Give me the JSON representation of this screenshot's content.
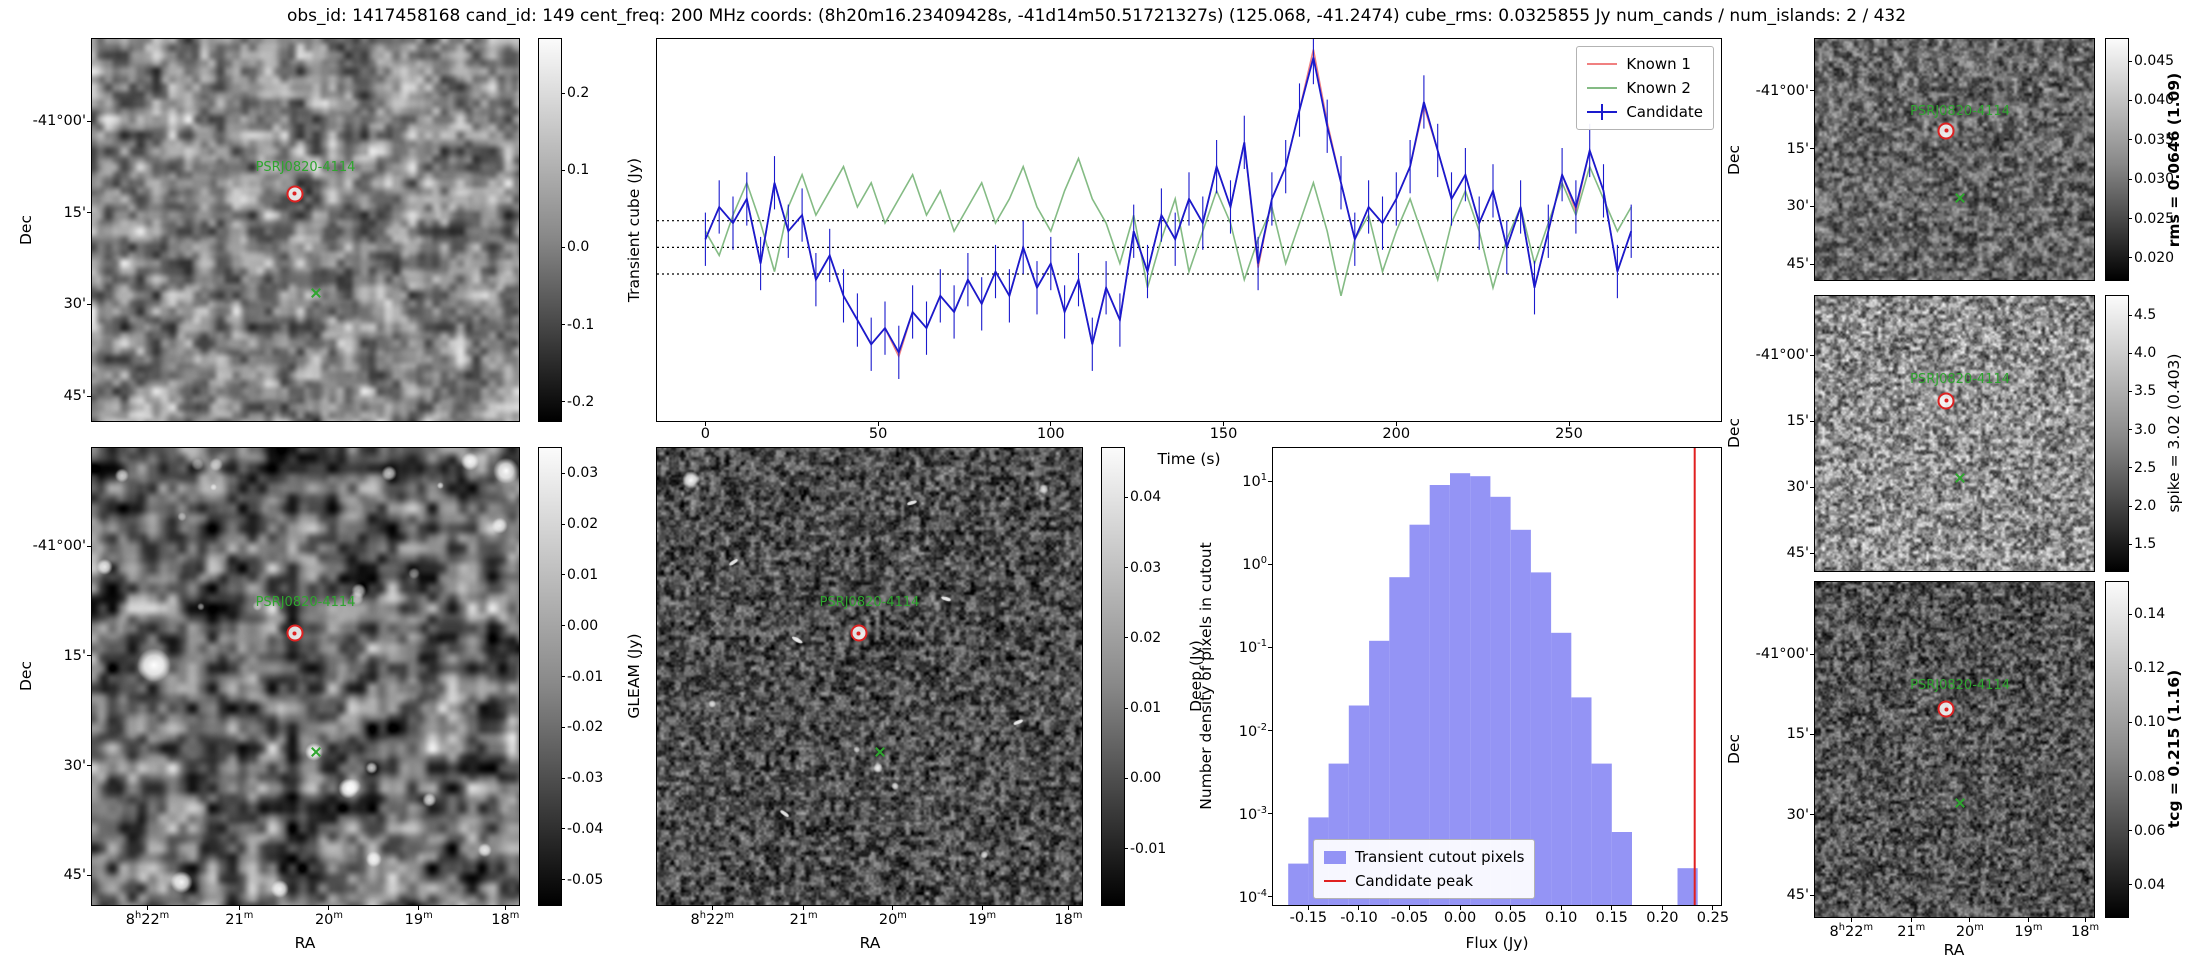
{
  "title": "obs_id: 1417458168 cand_id: 149 cent_freq: 200 MHz coords: (8h20m16.23409428s, -41d14m50.51721327s) (125.068, -41.2474) cube_rms: 0.0325855 Jy num_cands / num_islands: 2 / 432",
  "source_name": "PSRJ0820-4114",
  "colors": {
    "candidate": "#1a1acd",
    "known1": "#f08080",
    "known2": "#84bb84",
    "hist_fill": "#8181f3",
    "candidate_peak_line": "#e02020",
    "source_label": "#2fa52f",
    "marker": "#dd2222",
    "threshold_line": "#000000"
  },
  "axes": {
    "dec_label": "Dec",
    "ra_label": "RA",
    "dec_ticks": [
      "-41°00'",
      "15'",
      "30'",
      "45'"
    ],
    "ra_ticks": [
      "8h22m",
      "21m",
      "20m",
      "19m",
      "18m"
    ]
  },
  "panels": {
    "transient": {
      "cbar_label": "Transient cube (Jy)",
      "vmin": -0.225,
      "vmax": 0.27,
      "cbar_ticks": [
        0.2,
        0.1,
        0.0,
        -0.1,
        -0.2
      ],
      "cbar_tick_labels": [
        "0.2",
        "0.1",
        "0.0",
        "-0.1",
        "-0.2"
      ]
    },
    "gleam": {
      "cbar_label": "GLEAM (Jy)",
      "vmin": -0.055,
      "vmax": 0.035,
      "cbar_ticks": [
        0.03,
        0.02,
        0.01,
        0.0,
        -0.01,
        -0.02,
        -0.03,
        -0.04,
        -0.05
      ],
      "cbar_tick_labels": [
        "0.03",
        "0.02",
        "0.01",
        "0.00",
        "-0.01",
        "-0.02",
        "-0.03",
        "-0.04",
        "-0.05"
      ]
    },
    "deep": {
      "cbar_label": "Deep (Jy)",
      "vmin": -0.018,
      "vmax": 0.047,
      "cbar_ticks": [
        0.04,
        0.03,
        0.02,
        0.01,
        0.0,
        -0.01
      ],
      "cbar_tick_labels": [
        "0.04",
        "0.03",
        "0.02",
        "0.01",
        "0.00",
        "-0.01"
      ]
    },
    "rms": {
      "cbar_label": "rms = 0.0646 (1.09)",
      "vmin": 0.0172,
      "vmax": 0.0478,
      "cbar_ticks": [
        0.045,
        0.04,
        0.035,
        0.03,
        0.025,
        0.02
      ],
      "cbar_tick_labels": [
        "0.045",
        "0.040",
        "0.035",
        "0.030",
        "0.025",
        "0.020"
      ]
    },
    "spike": {
      "cbar_label": "spike = 3.02 (0.403)",
      "vmin": 1.15,
      "vmax": 4.75,
      "cbar_ticks": [
        4.5,
        4.0,
        3.5,
        3.0,
        2.5,
        2.0,
        1.5
      ],
      "cbar_tick_labels": [
        "4.5",
        "4.0",
        "3.5",
        "3.0",
        "2.5",
        "2.0",
        "1.5"
      ]
    },
    "tcg": {
      "cbar_label": "tcg = 0.215 (1.16)",
      "vmin": 0.028,
      "vmax": 0.152,
      "cbar_ticks": [
        0.14,
        0.12,
        0.1,
        0.08,
        0.06,
        0.04
      ],
      "cbar_tick_labels": [
        "0.14",
        "0.12",
        "0.10",
        "0.08",
        "0.06",
        "0.04"
      ]
    }
  },
  "chart_data": [
    {
      "type": "line",
      "title": "",
      "xlabel": "Time (s)",
      "ylabel": "",
      "xlim": [
        -14,
        294
      ],
      "ylim": [
        -0.215,
        0.258
      ],
      "xticks": [
        0,
        50,
        100,
        150,
        200,
        250
      ],
      "xtick_labels": [
        "0",
        "50",
        "100",
        "150",
        "200",
        "250"
      ],
      "threshold_lines": [
        0.033,
        0.0,
        -0.033
      ],
      "legend_position": "upper right",
      "x": [
        0,
        4,
        8,
        12,
        16,
        20,
        24,
        28,
        32,
        36,
        40,
        44,
        48,
        52,
        56,
        60,
        64,
        68,
        72,
        76,
        80,
        84,
        88,
        92,
        96,
        100,
        104,
        108,
        112,
        116,
        120,
        124,
        128,
        132,
        136,
        140,
        144,
        148,
        152,
        156,
        160,
        164,
        168,
        172,
        176,
        180,
        184,
        188,
        192,
        196,
        200,
        204,
        208,
        212,
        216,
        220,
        224,
        228,
        232,
        236,
        240,
        244,
        248,
        252,
        256,
        260,
        264,
        268
      ],
      "series": [
        {
          "name": "Known 1",
          "color": "#f08080",
          "values": [
            0.01,
            0.05,
            0.03,
            0.06,
            -0.02,
            0.08,
            0.02,
            0.04,
            -0.04,
            -0.01,
            -0.06,
            -0.09,
            -0.12,
            -0.1,
            -0.135,
            -0.08,
            -0.1,
            -0.06,
            -0.08,
            -0.04,
            -0.07,
            -0.03,
            -0.06,
            0.0,
            -0.05,
            -0.02,
            -0.08,
            -0.04,
            -0.12,
            -0.05,
            -0.09,
            0.02,
            -0.03,
            0.04,
            0.01,
            0.06,
            0.03,
            0.1,
            0.05,
            0.13,
            -0.025,
            0.06,
            0.1,
            0.17,
            0.245,
            0.155,
            0.08,
            0.01,
            0.05,
            0.03,
            0.06,
            0.1,
            0.175,
            0.12,
            0.06,
            0.09,
            0.03,
            0.07,
            0.0,
            0.05,
            -0.05,
            0.02,
            0.09,
            0.045,
            0.12,
            0.07,
            -0.03,
            0.02
          ]
        },
        {
          "name": "Known 2",
          "color": "#84bb84",
          "values": [
            0.02,
            -0.01,
            0.04,
            0.08,
            0.03,
            -0.03,
            0.05,
            0.09,
            0.04,
            0.07,
            0.1,
            0.05,
            0.08,
            0.03,
            0.06,
            0.09,
            0.04,
            0.07,
            0.02,
            0.05,
            0.08,
            0.03,
            0.06,
            0.1,
            0.05,
            0.02,
            0.07,
            0.11,
            0.06,
            0.03,
            -0.02,
            0.04,
            -0.05,
            0.01,
            0.06,
            -0.03,
            0.02,
            0.07,
            0.03,
            -0.04,
            0.01,
            0.05,
            -0.02,
            0.03,
            0.08,
            0.02,
            -0.06,
            0.01,
            0.04,
            -0.03,
            0.02,
            0.06,
            0.01,
            -0.04,
            0.03,
            0.07,
            0.02,
            -0.05,
            0.01,
            0.05,
            -0.02,
            0.03,
            0.08,
            0.04,
            0.1,
            0.06,
            0.02,
            0.05
          ]
        },
        {
          "name": "Candidate",
          "color": "#1a1acd",
          "errorbar": 0.033,
          "values": [
            0.01,
            0.05,
            0.03,
            0.06,
            -0.02,
            0.08,
            0.02,
            0.04,
            -0.04,
            -0.01,
            -0.06,
            -0.09,
            -0.12,
            -0.1,
            -0.13,
            -0.08,
            -0.1,
            -0.06,
            -0.08,
            -0.04,
            -0.07,
            -0.03,
            -0.06,
            0.0,
            -0.05,
            -0.02,
            -0.08,
            -0.04,
            -0.12,
            -0.05,
            -0.09,
            0.02,
            -0.03,
            0.04,
            0.01,
            0.06,
            0.03,
            0.1,
            0.05,
            0.13,
            -0.02,
            0.06,
            0.1,
            0.17,
            0.235,
            0.15,
            0.08,
            0.01,
            0.05,
            0.03,
            0.06,
            0.1,
            0.18,
            0.12,
            0.06,
            0.09,
            0.03,
            0.07,
            0.0,
            0.05,
            -0.05,
            0.02,
            0.09,
            0.05,
            0.12,
            0.07,
            -0.03,
            0.02
          ]
        }
      ]
    },
    {
      "type": "histogram",
      "xlabel": "Flux (Jy)",
      "ylabel": "Number density of pixels in cutout",
      "xlim": [
        -0.185,
        0.258
      ],
      "ylog_lim": [
        -4.1,
        1.4
      ],
      "xticks": [
        -0.15,
        -0.1,
        -0.05,
        0.0,
        0.05,
        0.1,
        0.15,
        0.2,
        0.25
      ],
      "xtick_labels": [
        "-0.15",
        "-0.10",
        "-0.05",
        "0.00",
        "0.05",
        "0.10",
        "0.15",
        "0.20",
        "0.25"
      ],
      "ytick_exponents": [
        1,
        0,
        -1,
        -2,
        -3,
        -4
      ],
      "bin_width": 0.02,
      "bin_centers": [
        -0.16,
        -0.14,
        -0.12,
        -0.1,
        -0.08,
        -0.06,
        -0.04,
        -0.02,
        0.0,
        0.02,
        0.04,
        0.06,
        0.08,
        0.1,
        0.12,
        0.14,
        0.16,
        0.225
      ],
      "densities": [
        0.00025,
        0.0009,
        0.004,
        0.02,
        0.12,
        0.7,
        3.0,
        9.0,
        12.5,
        11.5,
        6.5,
        2.6,
        0.8,
        0.15,
        0.025,
        0.004,
        0.0006,
        0.00022
      ],
      "candidate_peak": 0.232,
      "legend": [
        "Transient cutout pixels",
        "Candidate peak"
      ],
      "legend_position": "lower center"
    }
  ]
}
